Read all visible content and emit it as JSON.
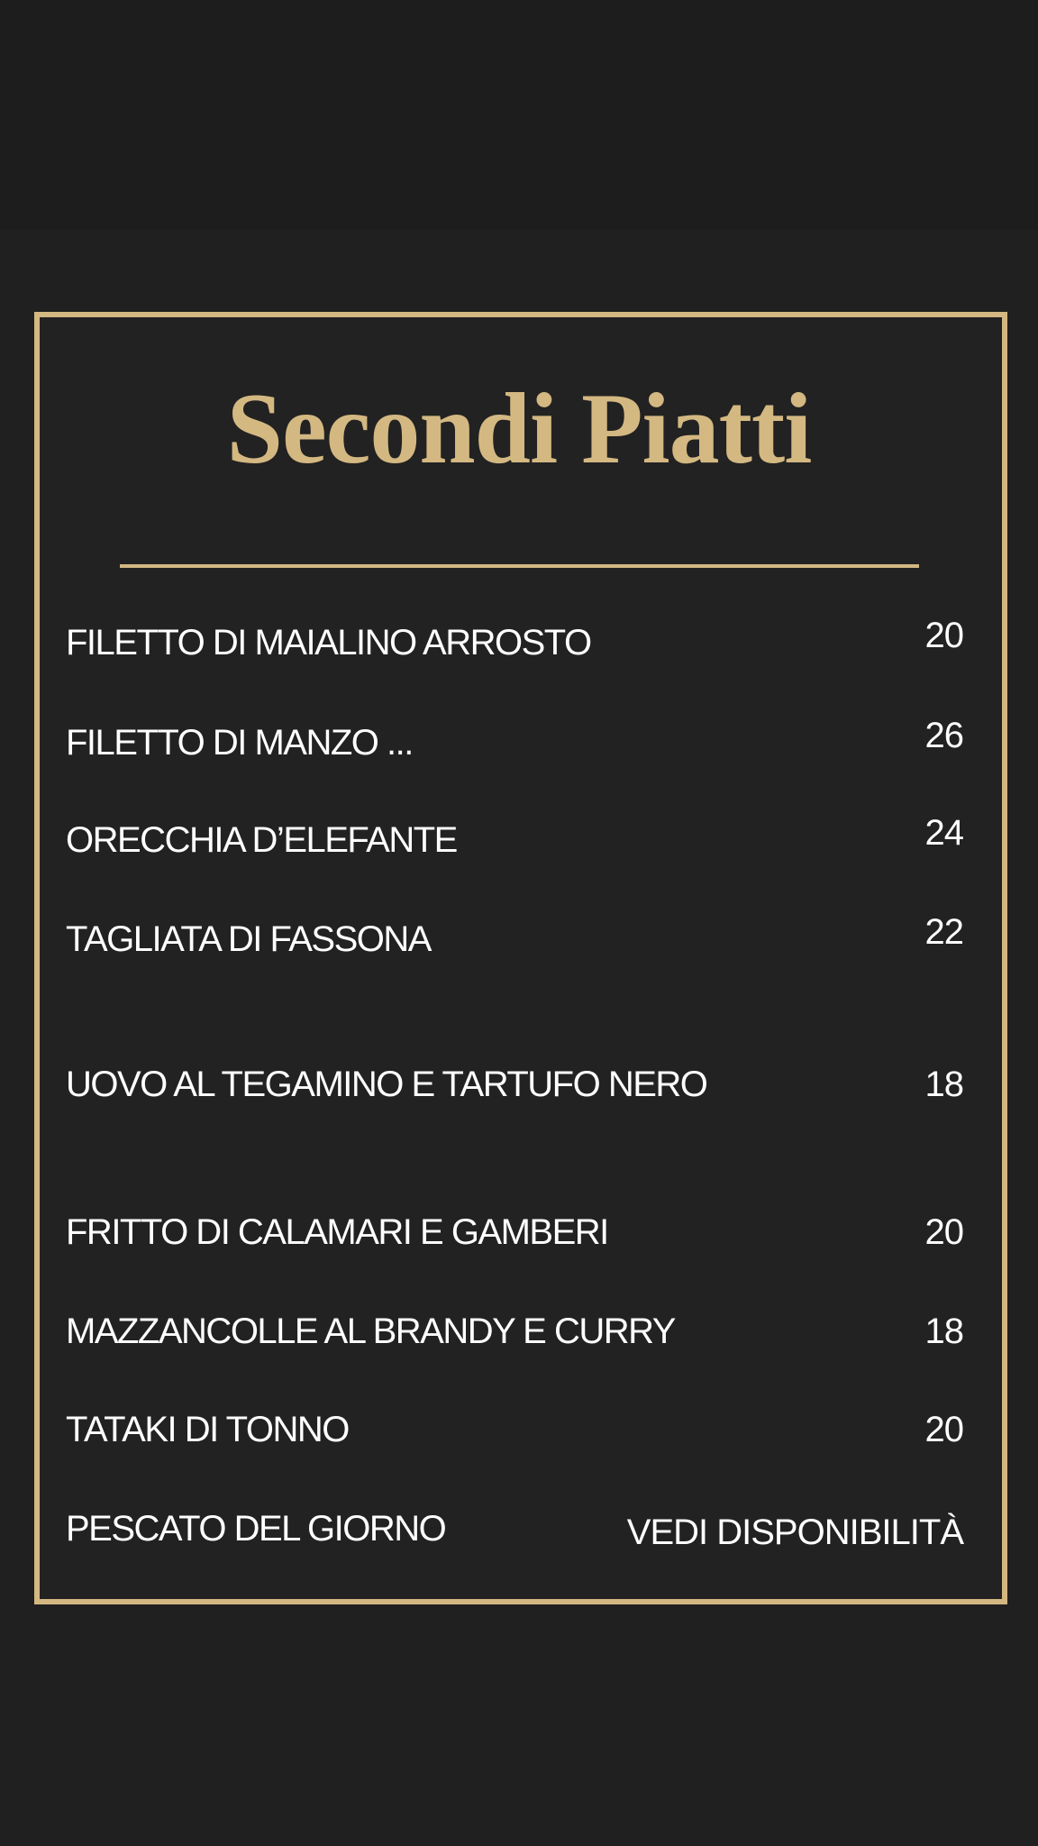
{
  "menu": {
    "title": "Secondi Piatti",
    "accent_color": "#d4b882",
    "items": [
      {
        "name": "FILETTO DI MAIALINO ARROSTO",
        "price": "20"
      },
      {
        "name": "FILETTO DI MANZO ...",
        "price": "26"
      },
      {
        "name": "ORECCHIA D’ELEFANTE",
        "price": "24"
      },
      {
        "name": "TAGLIATA DI FASSONA",
        "price": "22"
      },
      {
        "name": "UOVO AL TEGAMINO E TARTUFO NERO",
        "price": "18"
      },
      {
        "name": "FRITTO DI CALAMARI E GAMBERI",
        "price": "20"
      },
      {
        "name": "MAZZANCOLLE AL BRANDY E CURRY",
        "price": "18"
      },
      {
        "name": "TATAKI DI TONNO",
        "price": "20"
      },
      {
        "name": "PESCATO DEL GIORNO",
        "price": "VEDI DISPONIBILITÀ"
      }
    ]
  }
}
